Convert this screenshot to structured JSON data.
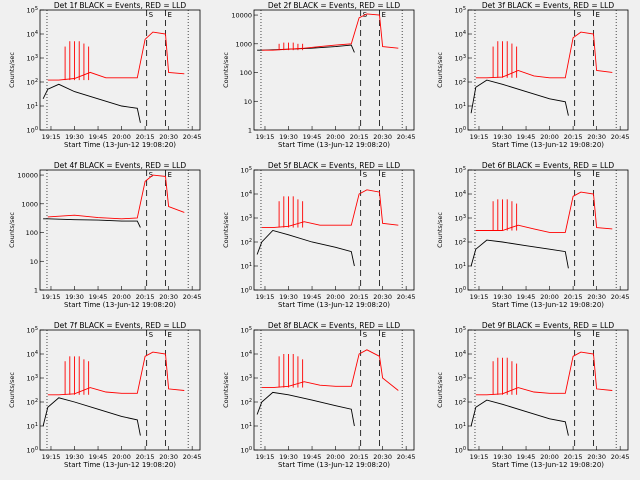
{
  "figure": {
    "xlabel": "Start Time (13-Jun-12 19:08:20)",
    "ylabel": "Counts/sec",
    "colors": {
      "events": "#000000",
      "lld": "#ff0000",
      "background": "#f0f0f0"
    }
  },
  "chart_data": [
    {
      "type": "line",
      "title": "Det 1f BLACK = Events, RED = LLD",
      "ylabel": "Counts/sec",
      "xlabel": "Start Time (13-Jun-12 19:08:20)",
      "x_ticks": [
        "19:15",
        "19:30",
        "19:45",
        "20:00",
        "20:15",
        "20:30",
        "20:45"
      ],
      "y_ticks": [
        "10^0",
        "10^1",
        "10^2",
        "10^3",
        "10^4",
        "10^5"
      ],
      "ylim": [
        1,
        100000
      ],
      "yscale": "log",
      "markers": [
        {
          "label": "S",
          "time": "20:16"
        },
        {
          "label": "E",
          "time": "20:28"
        }
      ],
      "series": [
        {
          "name": "Events",
          "color": "#000000",
          "x": [
            "19:10",
            "19:13",
            "19:20",
            "19:30",
            "19:45",
            "20:00",
            "20:10",
            "20:12"
          ],
          "values": [
            20,
            50,
            80,
            40,
            20,
            10,
            8,
            2
          ]
        },
        {
          "name": "LLD",
          "color": "#ff0000",
          "x": [
            "19:13",
            "19:20",
            "19:30",
            "19:40",
            "19:50",
            "20:00",
            "20:10",
            "20:15",
            "20:20",
            "20:28",
            "20:30",
            "20:40"
          ],
          "values": [
            120,
            120,
            140,
            250,
            150,
            150,
            150,
            6000,
            12000,
            10000,
            250,
            220
          ],
          "spikes": {
            "x": [
              "19:24",
              "19:27",
              "19:30",
              "19:33",
              "19:36",
              "19:39"
            ],
            "values": [
              3000,
              5000,
              5000,
              5000,
              4000,
              3000
            ]
          }
        }
      ]
    },
    {
      "type": "line",
      "title": "Det 2f BLACK = Events, RED = LLD",
      "ylabel": "Counts/sec",
      "xlabel": "Start Time (13-Jun-12 19:08:20)",
      "x_ticks": [
        "19:15",
        "19:30",
        "19:45",
        "20:00",
        "20:15",
        "20:30",
        "20:45"
      ],
      "y_ticks": [
        "1",
        "10",
        "100",
        "1000",
        "10000"
      ],
      "ylim": [
        1,
        15000
      ],
      "yscale": "log",
      "markers": [
        {
          "label": "S",
          "time": "20:16"
        },
        {
          "label": "E",
          "time": "20:28"
        }
      ],
      "series": [
        {
          "name": "Events",
          "color": "#000000",
          "x": [
            "19:10",
            "19:13",
            "19:30",
            "19:45",
            "20:00",
            "20:10",
            "20:12"
          ],
          "values": [
            600,
            600,
            650,
            700,
            800,
            900,
            500
          ]
        },
        {
          "name": "LLD",
          "color": "#ff0000",
          "x": [
            "19:13",
            "19:20",
            "19:30",
            "19:40",
            "19:50",
            "20:00",
            "20:10",
            "20:15",
            "20:20",
            "20:28",
            "20:30",
            "20:40"
          ],
          "values": [
            600,
            600,
            650,
            700,
            800,
            900,
            1000,
            8000,
            11000,
            10000,
            800,
            700
          ],
          "spikes": {
            "x": [
              "19:24",
              "19:27",
              "19:30",
              "19:33",
              "19:36",
              "19:39"
            ],
            "values": [
              1000,
              1100,
              1100,
              1100,
              1000,
              1000
            ]
          }
        }
      ]
    },
    {
      "type": "line",
      "title": "Det 3f BLACK = Events, RED = LLD",
      "ylabel": "Counts/sec",
      "xlabel": "Start Time (13-Jun-12 19:08:20)",
      "x_ticks": [
        "19:15",
        "19:30",
        "19:45",
        "20:00",
        "20:15",
        "20:30",
        "20:45"
      ],
      "y_ticks": [
        "10^0",
        "10^1",
        "10^2",
        "10^3",
        "10^4",
        "10^5"
      ],
      "ylim": [
        1,
        100000
      ],
      "yscale": "log",
      "markers": [
        {
          "label": "S",
          "time": "20:16"
        },
        {
          "label": "E",
          "time": "20:28"
        }
      ],
      "series": [
        {
          "name": "Events",
          "color": "#000000",
          "x": [
            "19:10",
            "19:13",
            "19:20",
            "19:30",
            "19:45",
            "20:00",
            "20:10",
            "20:12"
          ],
          "values": [
            5,
            60,
            120,
            80,
            40,
            20,
            15,
            4
          ]
        },
        {
          "name": "LLD",
          "color": "#ff0000",
          "x": [
            "19:13",
            "19:20",
            "19:30",
            "19:40",
            "19:50",
            "20:00",
            "20:10",
            "20:15",
            "20:20",
            "20:28",
            "20:30",
            "20:40"
          ],
          "values": [
            150,
            150,
            160,
            300,
            180,
            150,
            150,
            7000,
            12000,
            10000,
            300,
            250
          ],
          "spikes": {
            "x": [
              "19:24",
              "19:27",
              "19:30",
              "19:33",
              "19:36",
              "19:39"
            ],
            "values": [
              3000,
              5000,
              5000,
              5000,
              4000,
              3000
            ]
          }
        }
      ]
    },
    {
      "type": "line",
      "title": "Det 4f BLACK = Events, RED = LLD",
      "ylabel": "Counts/sec",
      "xlabel": "Start Time (13-Jun-12 19:08:20)",
      "x_ticks": [
        "19:15",
        "19:30",
        "19:45",
        "20:00",
        "20:15",
        "20:30",
        "20:45"
      ],
      "y_ticks": [
        "1",
        "10",
        "100",
        "1000",
        "10000"
      ],
      "ylim": [
        1,
        15000
      ],
      "yscale": "log",
      "markers": [
        {
          "label": "S",
          "time": "20:16"
        },
        {
          "label": "E",
          "time": "20:28"
        }
      ],
      "series": [
        {
          "name": "Events",
          "color": "#000000",
          "x": [
            "19:10",
            "19:13",
            "19:30",
            "19:45",
            "20:00",
            "20:10",
            "20:12"
          ],
          "values": [
            300,
            300,
            280,
            270,
            250,
            250,
            150
          ]
        },
        {
          "name": "LLD",
          "color": "#ff0000",
          "x": [
            "19:13",
            "19:30",
            "19:45",
            "20:00",
            "20:10",
            "20:15",
            "20:20",
            "20:28",
            "20:30",
            "20:40"
          ],
          "values": [
            350,
            400,
            330,
            300,
            320,
            6000,
            10000,
            9000,
            800,
            500
          ]
        }
      ]
    },
    {
      "type": "line",
      "title": "Det 5f BLACK = Events, RED = LLD",
      "ylabel": "Counts/sec",
      "xlabel": "Start Time (13-Jun-12 19:08:20)",
      "x_ticks": [
        "19:15",
        "19:30",
        "19:45",
        "20:00",
        "20:15",
        "20:30",
        "20:45"
      ],
      "y_ticks": [
        "10^0",
        "10^1",
        "10^2",
        "10^3",
        "10^4",
        "10^5"
      ],
      "ylim": [
        1,
        100000
      ],
      "yscale": "log",
      "markers": [
        {
          "label": "S",
          "time": "20:16"
        },
        {
          "label": "E",
          "time": "20:28"
        }
      ],
      "series": [
        {
          "name": "Events",
          "color": "#000000",
          "x": [
            "19:10",
            "19:13",
            "19:20",
            "19:30",
            "19:45",
            "20:00",
            "20:10",
            "20:12"
          ],
          "values": [
            30,
            100,
            300,
            200,
            100,
            60,
            40,
            10
          ]
        },
        {
          "name": "LLD",
          "color": "#ff0000",
          "x": [
            "19:13",
            "19:20",
            "19:30",
            "19:40",
            "19:50",
            "20:00",
            "20:10",
            "20:15",
            "20:20",
            "20:28",
            "20:30",
            "20:40"
          ],
          "values": [
            400,
            400,
            450,
            700,
            500,
            500,
            500,
            10000,
            15000,
            12000,
            600,
            500
          ],
          "spikes": {
            "x": [
              "19:24",
              "19:27",
              "19:30",
              "19:33",
              "19:36",
              "19:39"
            ],
            "values": [
              5000,
              8000,
              8000,
              8000,
              6000,
              5000
            ]
          }
        }
      ]
    },
    {
      "type": "line",
      "title": "Det 6f BLACK = Events, RED = LLD",
      "ylabel": "Counts/sec",
      "xlabel": "Start Time (13-Jun-12 19:08:20)",
      "x_ticks": [
        "19:15",
        "19:30",
        "19:45",
        "20:00",
        "20:15",
        "20:30",
        "20:45"
      ],
      "y_ticks": [
        "10^0",
        "10^1",
        "10^2",
        "10^3",
        "10^4",
        "10^5"
      ],
      "ylim": [
        1,
        100000
      ],
      "yscale": "log",
      "markers": [
        {
          "label": "S",
          "time": "20:16"
        },
        {
          "label": "E",
          "time": "20:28"
        }
      ],
      "series": [
        {
          "name": "Events",
          "color": "#000000",
          "x": [
            "19:10",
            "19:13",
            "19:20",
            "19:30",
            "19:45",
            "20:00",
            "20:10",
            "20:12"
          ],
          "values": [
            10,
            50,
            120,
            100,
            70,
            50,
            40,
            8
          ]
        },
        {
          "name": "LLD",
          "color": "#ff0000",
          "x": [
            "19:13",
            "19:20",
            "19:30",
            "19:40",
            "19:50",
            "20:00",
            "20:10",
            "20:15",
            "20:20",
            "20:28",
            "20:30",
            "20:40"
          ],
          "values": [
            300,
            300,
            300,
            500,
            350,
            250,
            250,
            8000,
            12000,
            10000,
            400,
            350
          ],
          "spikes": {
            "x": [
              "19:24",
              "19:27",
              "19:30",
              "19:33",
              "19:36",
              "19:39"
            ],
            "values": [
              5000,
              6000,
              6000,
              6000,
              5000,
              4000
            ]
          }
        }
      ]
    },
    {
      "type": "line",
      "title": "Det 7f BLACK = Events, RED = LLD",
      "ylabel": "Counts/sec",
      "xlabel": "Start Time (13-Jun-12 19:08:20)",
      "x_ticks": [
        "19:15",
        "19:30",
        "19:45",
        "20:00",
        "20:15",
        "20:30",
        "20:45"
      ],
      "y_ticks": [
        "10^0",
        "10^1",
        "10^2",
        "10^3",
        "10^4",
        "10^5"
      ],
      "ylim": [
        1,
        100000
      ],
      "yscale": "log",
      "markers": [
        {
          "label": "S",
          "time": "20:16"
        },
        {
          "label": "E",
          "time": "20:28"
        }
      ],
      "series": [
        {
          "name": "Events",
          "color": "#000000",
          "x": [
            "19:10",
            "19:13",
            "19:20",
            "19:30",
            "19:45",
            "20:00",
            "20:10",
            "20:12"
          ],
          "values": [
            10,
            60,
            150,
            100,
            50,
            25,
            18,
            4
          ]
        },
        {
          "name": "LLD",
          "color": "#ff0000",
          "x": [
            "19:13",
            "19:20",
            "19:30",
            "19:40",
            "19:50",
            "20:00",
            "20:10",
            "20:15",
            "20:20",
            "20:28",
            "20:30",
            "20:40"
          ],
          "values": [
            200,
            200,
            220,
            400,
            260,
            230,
            230,
            8000,
            12000,
            10000,
            350,
            300
          ],
          "spikes": {
            "x": [
              "19:24",
              "19:27",
              "19:30",
              "19:33",
              "19:36",
              "19:39"
            ],
            "values": [
              5000,
              8000,
              8000,
              8000,
              6000,
              5000
            ]
          }
        }
      ]
    },
    {
      "type": "line",
      "title": "Det 8f BLACK = Events, RED = LLD",
      "ylabel": "Counts/sec",
      "xlabel": "Start Time (13-Jun-12 19:08:20)",
      "x_ticks": [
        "19:15",
        "19:30",
        "19:45",
        "20:00",
        "20:15",
        "20:30",
        "20:45"
      ],
      "y_ticks": [
        "10^0",
        "10^1",
        "10^2",
        "10^3",
        "10^4",
        "10^5"
      ],
      "ylim": [
        1,
        100000
      ],
      "yscale": "log",
      "markers": [
        {
          "label": "S",
          "time": "20:16"
        },
        {
          "label": "E",
          "time": "20:28"
        }
      ],
      "series": [
        {
          "name": "Events",
          "color": "#000000",
          "x": [
            "19:10",
            "19:13",
            "19:20",
            "19:30",
            "19:45",
            "20:00",
            "20:10",
            "20:12"
          ],
          "values": [
            30,
            100,
            250,
            200,
            120,
            70,
            50,
            10
          ]
        },
        {
          "name": "LLD",
          "color": "#ff0000",
          "x": [
            "19:13",
            "19:20",
            "19:30",
            "19:40",
            "19:50",
            "20:00",
            "20:10",
            "20:15",
            "20:20",
            "20:28",
            "20:30",
            "20:40"
          ],
          "values": [
            400,
            400,
            450,
            700,
            500,
            450,
            450,
            10000,
            15000,
            8000,
            1000,
            300
          ],
          "spikes": {
            "x": [
              "19:24",
              "19:27",
              "19:30",
              "19:33",
              "19:36",
              "19:39"
            ],
            "values": [
              8000,
              10000,
              10000,
              10000,
              8000,
              6000
            ]
          }
        }
      ]
    },
    {
      "type": "line",
      "title": "Det 9f BLACK = Events, RED = LLD",
      "ylabel": "Counts/sec",
      "xlabel": "Start Time (13-Jun-12 19:08:20)",
      "x_ticks": [
        "19:15",
        "19:30",
        "19:45",
        "20:00",
        "20:15",
        "20:30",
        "20:45"
      ],
      "y_ticks": [
        "10^0",
        "10^1",
        "10^2",
        "10^3",
        "10^4",
        "10^5"
      ],
      "ylim": [
        1,
        100000
      ],
      "yscale": "log",
      "markers": [
        {
          "label": "S",
          "time": "20:16"
        },
        {
          "label": "E",
          "time": "20:28"
        }
      ],
      "series": [
        {
          "name": "Events",
          "color": "#000000",
          "x": [
            "19:10",
            "19:13",
            "19:20",
            "19:30",
            "19:45",
            "20:00",
            "20:10",
            "20:12"
          ],
          "values": [
            10,
            60,
            120,
            80,
            40,
            20,
            15,
            4
          ]
        },
        {
          "name": "LLD",
          "color": "#ff0000",
          "x": [
            "19:13",
            "19:20",
            "19:30",
            "19:40",
            "19:50",
            "20:00",
            "20:10",
            "20:15",
            "20:20",
            "20:28",
            "20:30",
            "20:40"
          ],
          "values": [
            200,
            200,
            220,
            400,
            260,
            230,
            230,
            8000,
            12000,
            10000,
            350,
            300
          ],
          "spikes": {
            "x": [
              "19:24",
              "19:27",
              "19:30",
              "19:33",
              "19:36",
              "19:39"
            ],
            "values": [
              5000,
              7000,
              7000,
              7000,
              5000,
              4000
            ]
          }
        }
      ]
    }
  ]
}
